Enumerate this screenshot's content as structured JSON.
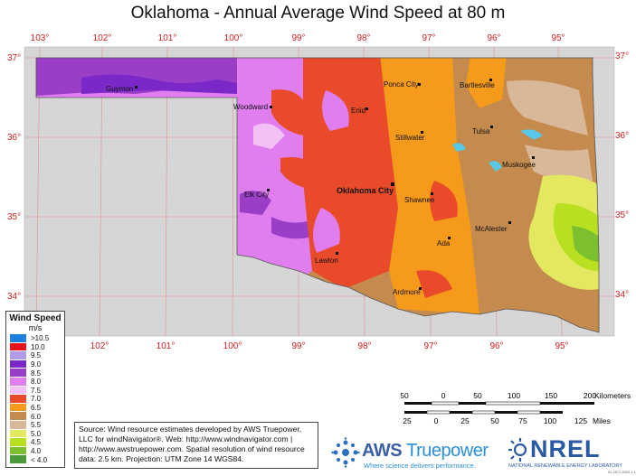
{
  "title": "Oklahoma - Annual Average Wind Speed at 80 m",
  "longitudes_top": [
    "103°",
    "102°",
    "101°",
    "100°",
    "99°",
    "98°",
    "97°",
    "96°",
    "95°"
  ],
  "longitudes_bottom": [
    "102°",
    "101°",
    "100°",
    "99°",
    "98°",
    "97°",
    "96°",
    "95°"
  ],
  "latitudes_left": [
    "37°",
    "36°",
    "35°",
    "34°"
  ],
  "latitudes_right": [
    "37°",
    "36°",
    "35°",
    "34°"
  ],
  "cities": [
    {
      "name": "Guymon",
      "bold": false
    },
    {
      "name": "Ponca City",
      "bold": false
    },
    {
      "name": "Bartlesville",
      "bold": false
    },
    {
      "name": "Woodward",
      "bold": false
    },
    {
      "name": "Enid",
      "bold": false
    },
    {
      "name": "Stillwater",
      "bold": false
    },
    {
      "name": "Tulsa",
      "bold": false
    },
    {
      "name": "Muskogee",
      "bold": false
    },
    {
      "name": "Oklahoma City",
      "bold": true
    },
    {
      "name": "Elk City",
      "bold": false
    },
    {
      "name": "Shawnee",
      "bold": false
    },
    {
      "name": "McAlester",
      "bold": false
    },
    {
      "name": "Ada",
      "bold": false
    },
    {
      "name": "Lawton",
      "bold": false
    },
    {
      "name": "Ardmore",
      "bold": false
    }
  ],
  "legend": {
    "title": "Wind Speed",
    "unit": "m/s",
    "items": [
      {
        "label": ">10.5",
        "color": "#1e7fe0"
      },
      {
        "label": "10.0",
        "color": "#e8121c"
      },
      {
        "label": "9.5",
        "color": "#b09ae8"
      },
      {
        "label": "9.0",
        "color": "#7a28c8"
      },
      {
        "label": "8.5",
        "color": "#9a3ec8"
      },
      {
        "label": "8.0",
        "color": "#e07ef0"
      },
      {
        "label": "7.5",
        "color": "#f2c0f5"
      },
      {
        "label": "7.0",
        "color": "#e84a2a"
      },
      {
        "label": "6.5",
        "color": "#f59a1a"
      },
      {
        "label": "6.0",
        "color": "#c58a4e"
      },
      {
        "label": "5.5",
        "color": "#d8b898"
      },
      {
        "label": "5.0",
        "color": "#e4e860"
      },
      {
        "label": "4.5",
        "color": "#b8e020"
      },
      {
        "label": "4.0",
        "color": "#7cc030"
      },
      {
        "label": "< 4.0",
        "color": "#4a9a3a"
      }
    ]
  },
  "source_text": "Source: Wind resource estimates developed by AWS Truepower, LLC for windNavigator®. Web: http://www.windnavigator.com | http://www.awstruepower.com. Spatial resolution of wind resource data: 2.5 km. Projection: UTM Zone 14 WGS84.",
  "scale_km": {
    "ticks": [
      "50",
      "0",
      "50",
      "100",
      "150",
      "200"
    ],
    "unit": "Kilometers"
  },
  "scale_miles": {
    "ticks": [
      "25",
      "0",
      "25",
      "50",
      "75",
      "100",
      "125"
    ],
    "unit": "Miles"
  },
  "aws_logo": {
    "name": "AWS",
    "name2": "Truepower",
    "tagline": "Where science delivers performance."
  },
  "nrel_logo": {
    "name": "NREL",
    "subtitle": "NATIONAL RENEWABLE ENERGY LABORATORY"
  },
  "footnote": "01-OCT-2010 1.1"
}
